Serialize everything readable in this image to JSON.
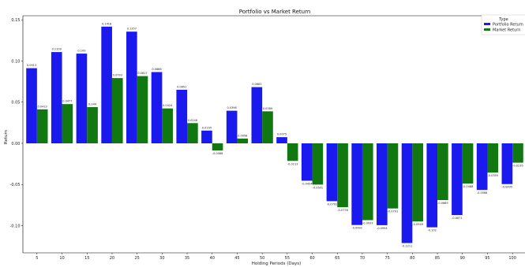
{
  "chart_data": {
    "type": "bar",
    "title": "Portfolio vs Market Return",
    "xlabel": "Holding Periods (Days)",
    "ylabel": "Return",
    "categories": [
      "5",
      "10",
      "15",
      "20",
      "25",
      "30",
      "35",
      "40",
      "45",
      "50",
      "55",
      "60",
      "65",
      "70",
      "75",
      "80",
      "85",
      "90",
      "95",
      "100"
    ],
    "ylim": [
      -0.133,
      0.155
    ],
    "yticks": [
      "0.15",
      "0.10",
      "0.05",
      "0.00",
      "-0.05",
      "-0.10"
    ],
    "ytick_values": [
      0.15,
      0.1,
      0.05,
      0.0,
      -0.05,
      -0.1
    ],
    "legend_title": "Type",
    "legend_position": "top-right",
    "grid": false,
    "series": [
      {
        "name": "Portfolio Return",
        "color": "#1a1aee",
        "values": [
          0.0913,
          0.1109,
          0.109,
          0.1418,
          0.1357,
          0.0866,
          0.0651,
          0.0155,
          0.0396,
          0.0683,
          0.0075,
          -0.0454,
          -0.0702,
          -0.0992,
          -0.0994,
          -0.1211,
          -0.102,
          -0.0871,
          -0.0566,
          -0.0495
        ],
        "labels": [
          "0.0913",
          "0.1109",
          "0.109",
          "0.1418",
          "0.1357",
          "0.0866",
          "0.0651",
          "0.0155",
          "0.0396",
          "0.0683",
          "0.0075",
          "-0.0454",
          "-0.0702",
          "-0.0992",
          "-0.0994",
          "-0.1211",
          "-0.102",
          "-0.0871",
          "-0.0566",
          "-0.0495"
        ]
      },
      {
        "name": "Market Return",
        "color": "#117711",
        "values": [
          0.0413,
          0.0477,
          0.044,
          0.0793,
          0.0817,
          0.0424,
          0.0246,
          -0.0086,
          0.0058,
          0.0389,
          -0.0213,
          -0.0501,
          -0.0776,
          -0.0933,
          -0.0791,
          -0.0949,
          -0.0689,
          -0.0488,
          -0.0355,
          -0.0235
        ],
        "labels": [
          "0.0413",
          "0.0477",
          "0.044",
          "0.0793",
          "0.0817",
          "0.0424",
          "0.0246",
          "-0.0086",
          "0.0058",
          "0.0389",
          "-0.0213",
          "-0.0501",
          "-0.0776",
          "-0.0933",
          "-0.0791",
          "-0.0949",
          "-0.0689",
          "-0.0488",
          "-0.0355",
          "-0.0235"
        ]
      }
    ]
  }
}
